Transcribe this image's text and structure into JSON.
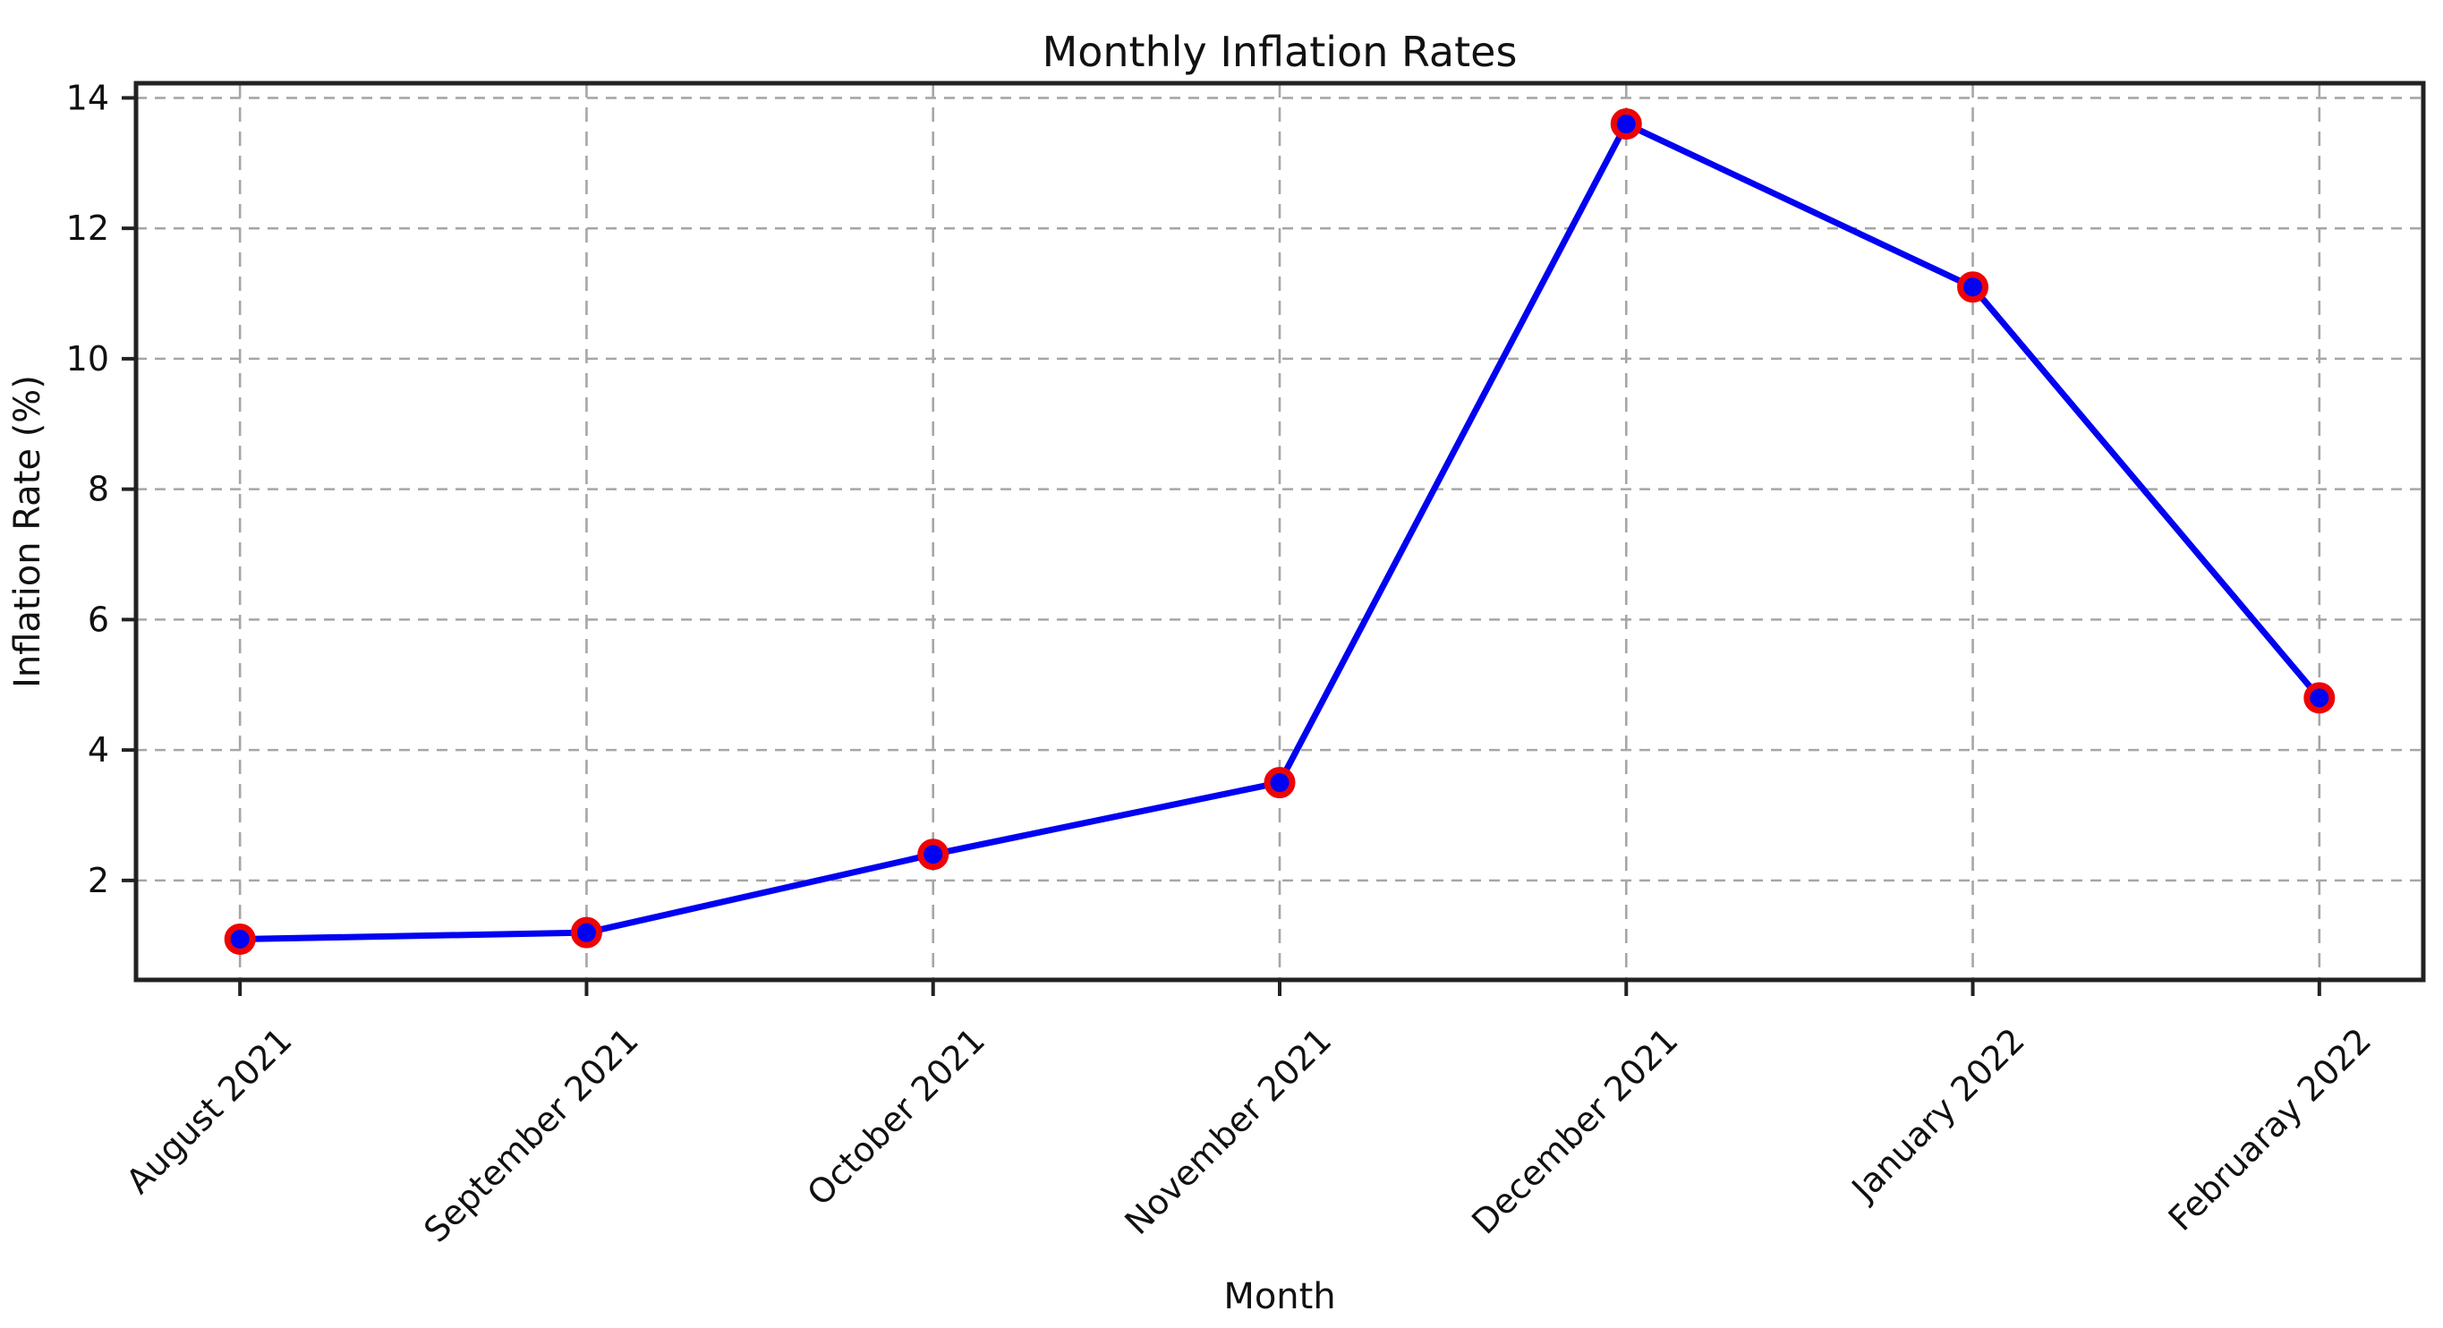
{
  "chart_data": {
    "type": "line",
    "title": "Monthly Inflation Rates",
    "xlabel": "Month",
    "ylabel": "Inflation Rate (%)",
    "categories": [
      "August 2021",
      "September 2021",
      "October 2021",
      "November 2021",
      "December 2021",
      "January 2022",
      "Februaray 2022"
    ],
    "values": [
      1.1,
      1.2,
      2.4,
      3.5,
      13.6,
      11.1,
      4.8
    ],
    "yticks": [
      2,
      4,
      6,
      8,
      10,
      12,
      14
    ],
    "ylim": [
      0.475,
      14.225
    ],
    "x_margin": 0.3,
    "grid": true,
    "grid_style": "dashed",
    "x_tick_rotation": 45,
    "legend_position": "none",
    "colors": {
      "line": "#0202f2",
      "marker_face": "#0202f2",
      "marker_edge": "#ee0404",
      "grid": "#a6a6a6",
      "axis": "#222222",
      "text": "#111111",
      "background": "#ffffff"
    }
  }
}
